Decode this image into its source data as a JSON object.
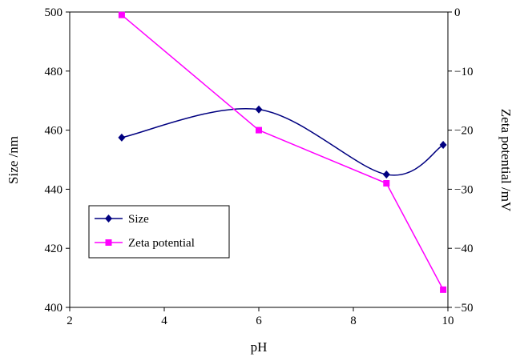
{
  "chart_data": {
    "type": "line",
    "xlabel": "pH",
    "ylabel": "Size /nm",
    "y2label": "Zeta potential /mV",
    "xlim": [
      2,
      10
    ],
    "ylim": [
      400,
      500
    ],
    "y2lim": [
      -50,
      0
    ],
    "xticks": [
      "2",
      "4",
      "6",
      "8",
      "10"
    ],
    "yticks": [
      "400",
      "420",
      "440",
      "460",
      "480",
      "500"
    ],
    "y2ticks": [
      "-50",
      "-40",
      "-30",
      "-20",
      "-10",
      "0"
    ],
    "grid": false,
    "legend_position": "lower-left",
    "series": [
      {
        "name": "Size",
        "axis": "left",
        "color": "#000080",
        "marker": "diamond",
        "smooth": true,
        "x": [
          3.1,
          6.0,
          8.7,
          9.9
        ],
        "y": [
          457.5,
          467,
          445,
          455
        ]
      },
      {
        "name": "Zeta potential",
        "axis": "right",
        "color": "#ff00ff",
        "marker": "square",
        "smooth": false,
        "x": [
          3.1,
          6.0,
          8.7,
          9.9
        ],
        "y": [
          -0.5,
          -20,
          -29,
          -47
        ]
      }
    ]
  }
}
